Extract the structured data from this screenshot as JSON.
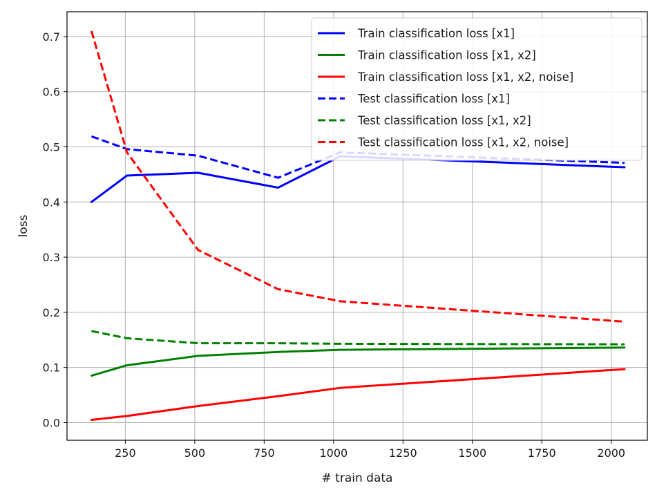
{
  "chart_data": {
    "type": "line",
    "xlabel": "# train data",
    "ylabel": "loss",
    "xlim": [
      40,
      2130
    ],
    "ylim": [
      -0.032,
      0.745
    ],
    "xticks": [
      250,
      500,
      750,
      1000,
      1250,
      1500,
      1750,
      2000
    ],
    "xtick_labels": [
      "250",
      "500",
      "750",
      "1000",
      "1250",
      "1500",
      "1750",
      "2000"
    ],
    "yticks": [
      0.0,
      0.1,
      0.2,
      0.3,
      0.4,
      0.5,
      0.6,
      0.7
    ],
    "ytick_labels": [
      "0.0",
      "0.1",
      "0.2",
      "0.3",
      "0.4",
      "0.5",
      "0.6",
      "0.7"
    ],
    "grid": true,
    "legend_position": "top-right",
    "x": [
      128,
      256,
      512,
      800,
      1024,
      2048
    ],
    "series": [
      {
        "name": "Train classification loss [x1]",
        "color": "#0000ff",
        "style": "solid",
        "values": [
          0.4,
          0.448,
          0.453,
          0.426,
          0.483,
          0.463
        ]
      },
      {
        "name": "Train classification loss [x1, x2]",
        "color": "#008000",
        "style": "solid",
        "values": [
          0.085,
          0.104,
          0.121,
          0.128,
          0.132,
          0.136
        ]
      },
      {
        "name": "Train classification loss [x1, x2, noise]",
        "color": "#ff0000",
        "style": "solid",
        "values": [
          0.005,
          0.012,
          0.03,
          0.048,
          0.063,
          0.097
        ]
      },
      {
        "name": "Test classification loss [x1]",
        "color": "#0000ff",
        "style": "dashed",
        "values": [
          0.519,
          0.496,
          0.484,
          0.444,
          0.49,
          0.471
        ]
      },
      {
        "name": "Test classification loss [x1, x2]",
        "color": "#008000",
        "style": "dashed",
        "values": [
          0.166,
          0.153,
          0.144,
          0.144,
          0.143,
          0.142
        ]
      },
      {
        "name": "Test classification loss [x1, x2, noise]",
        "color": "#ff0000",
        "style": "dashed",
        "values": [
          0.71,
          0.49,
          0.313,
          0.242,
          0.22,
          0.183
        ]
      }
    ]
  }
}
